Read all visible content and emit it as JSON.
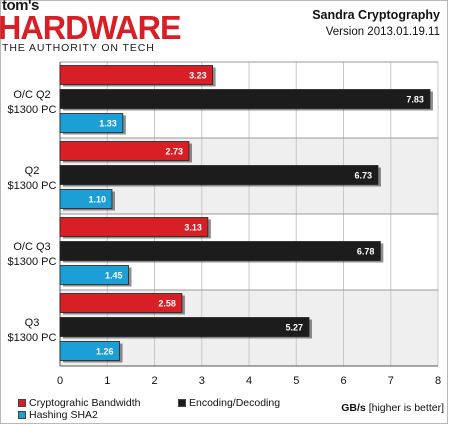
{
  "logo": {
    "top": "tom's",
    "brand": "HARDWARE",
    "tagline": "THE AUTHORITY ON TECH"
  },
  "colors": {
    "series1": "#d81f26",
    "series2": "#1c1c1c",
    "series3": "#1c9fd6",
    "band_alt": "#efefef",
    "grid": "#c8c8c8"
  },
  "chart_data": {
    "type": "bar",
    "orientation": "horizontal",
    "title": "Sandra Cryptography",
    "subtitle": "Version 2013.01.19.11",
    "categories": [
      {
        "line1": "O/C Q2",
        "line2": "$1300 PC"
      },
      {
        "line1": "Q2",
        "line2": "$1300 PC"
      },
      {
        "line1": "O/C Q3",
        "line2": "$1300 PC"
      },
      {
        "line1": "Q3",
        "line2": "$1300 PC"
      }
    ],
    "series": [
      {
        "name": "Cryptograhic Bandwidth",
        "values": [
          3.23,
          2.73,
          3.13,
          2.58
        ]
      },
      {
        "name": "Encoding/Decoding",
        "values": [
          7.83,
          6.73,
          6.78,
          5.27
        ]
      },
      {
        "name": "Hashing SHA2",
        "values": [
          1.33,
          1.1,
          1.45,
          1.26
        ]
      }
    ],
    "value_labels": [
      [
        "3.23",
        "2.73",
        "3.13",
        "2.58"
      ],
      [
        "7.83",
        "6.73",
        "6.78",
        "5.27"
      ],
      [
        "1.33",
        "1.10",
        "1.45",
        "1.26"
      ]
    ],
    "xlim": [
      0,
      8
    ],
    "x_ticks": [
      0,
      1,
      2,
      3,
      4,
      5,
      6,
      7,
      8
    ],
    "x_tick_labels": [
      "0",
      "1",
      "2",
      "3",
      "4",
      "5",
      "6",
      "7",
      "8"
    ],
    "xlabel_bold": "GB/s",
    "xlabel_rest": " [higher is better]",
    "grid": true,
    "legend_position": "bottom-left"
  }
}
